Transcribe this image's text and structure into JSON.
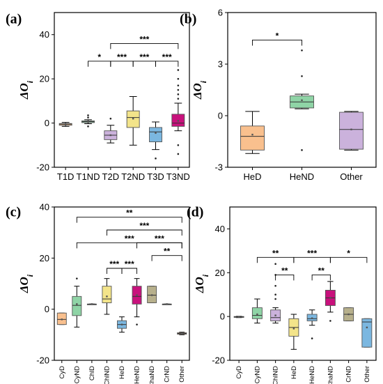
{
  "chart_data": [
    {
      "panel": "(a)",
      "type": "box",
      "ylabel": "ΔO",
      "ylabel_sub": "i",
      "ylim": [
        -20,
        50
      ],
      "yticks": [
        -20,
        0,
        20,
        40
      ],
      "categories": [
        "T1D",
        "T1ND",
        "T2D",
        "T2ND",
        "T3D",
        "T3ND"
      ],
      "boxes": [
        {
          "name": "T1D",
          "min": -1.5,
          "q1": -1.0,
          "median": -0.5,
          "q3": -0.2,
          "max": 0.3,
          "mean": -0.6,
          "color": "#f9c08e",
          "outliers": []
        },
        {
          "name": "T1ND",
          "min": -0.3,
          "q1": 0.2,
          "median": 0.6,
          "q3": 1.0,
          "max": 1.5,
          "mean": 0.6,
          "color": "#8fd4a6",
          "outliers": [
            2.5,
            3.5,
            -1.5
          ]
        },
        {
          "name": "T2D",
          "min": -9,
          "q1": -7.5,
          "median": -5.5,
          "q3": -3.5,
          "max": -1,
          "mean": -5.5,
          "color": "#cbb2dc",
          "outliers": [
            2
          ]
        },
        {
          "name": "T2ND",
          "min": -10,
          "q1": -2,
          "median": 2.5,
          "q3": 5.5,
          "max": 12,
          "mean": 2,
          "color": "#f3e48a",
          "outliers": []
        },
        {
          "name": "T3D",
          "min": -12,
          "q1": -8.5,
          "median": -4,
          "q3": -2,
          "max": 0.5,
          "mean": -4.5,
          "color": "#7bb7e0",
          "outliers": [
            -16
          ]
        },
        {
          "name": "T3ND",
          "min": -3.5,
          "q1": -1.5,
          "median": 0,
          "q3": 4,
          "max": 9,
          "mean": 1,
          "color": "#c8117c",
          "outliers": [
            11,
            13,
            15,
            17,
            20,
            24,
            -10,
            -14
          ]
        }
      ],
      "significance": [
        {
          "from": "T1ND",
          "to": "T2D",
          "label": "*",
          "y": 28
        },
        {
          "from": "T2D",
          "to": "T2ND",
          "label": "***",
          "y": 28
        },
        {
          "from": "T2ND",
          "to": "T3D",
          "label": "***",
          "y": 28
        },
        {
          "from": "T3D",
          "to": "T3ND",
          "label": "***",
          "y": 28
        },
        {
          "from": "T2D",
          "to": "T3ND",
          "label": "***",
          "y": 36
        }
      ]
    },
    {
      "panel": "(b)",
      "type": "box",
      "ylabel": "ΔO",
      "ylabel_sub": "i",
      "ylim": [
        -3,
        6
      ],
      "yticks": [
        -3,
        0,
        3,
        6
      ],
      "categories": [
        "HeD",
        "HeND",
        "Other"
      ],
      "boxes": [
        {
          "name": "HeD",
          "min": -2.2,
          "q1": -2.0,
          "median": -1.2,
          "q3": -0.6,
          "max": 0.25,
          "mean": -1.1,
          "color": "#f9c08e",
          "outliers": []
        },
        {
          "name": "HeND",
          "min": 0.4,
          "q1": 0.45,
          "median": 0.8,
          "q3": 1.15,
          "max": 1.25,
          "mean": 0.9,
          "color": "#8fd4a6",
          "outliers": [
            3.8,
            2.3,
            -2.0
          ]
        },
        {
          "name": "Other",
          "min": -2.0,
          "q1": -1.95,
          "median": -0.8,
          "q3": 0.2,
          "max": 0.25,
          "mean": -0.8,
          "color": "#cbb2dc",
          "outliers": []
        }
      ],
      "significance": [
        {
          "from": "HeD",
          "to": "HeND",
          "label": "*",
          "y": 4.4
        }
      ]
    },
    {
      "panel": "(c)",
      "type": "box",
      "ylabel": "ΔO",
      "ylabel_sub": "i",
      "ylim": [
        -20,
        40
      ],
      "yticks": [
        -20,
        0,
        20,
        40
      ],
      "categories": [
        "CyD",
        "CyND",
        "ChlD",
        "ChlND",
        "HeD",
        "HeND",
        "ChaND",
        "CrND",
        "Other"
      ],
      "boxes": [
        {
          "name": "CyD",
          "min": -6,
          "q1": -6,
          "median": -4,
          "q3": -1.5,
          "max": -1.5,
          "mean": -4,
          "color": "#f9c08e",
          "outliers": []
        },
        {
          "name": "CyND",
          "min": -7,
          "q1": -2.5,
          "median": 1.5,
          "q3": 5,
          "max": 9,
          "mean": 2,
          "color": "#8fd4a6",
          "outliers": [
            12
          ]
        },
        {
          "name": "ChlD",
          "min": 2,
          "q1": 2,
          "median": 2,
          "q3": 2,
          "max": 2,
          "mean": 2,
          "color": "#cbb2dc",
          "outliers": []
        },
        {
          "name": "ChlND",
          "min": -2,
          "q1": 2.5,
          "median": 4,
          "q3": 9,
          "max": 12,
          "mean": 5,
          "color": "#f3e48a",
          "outliers": []
        },
        {
          "name": "HeD",
          "min": -9,
          "q1": -7.5,
          "median": -6,
          "q3": -4.5,
          "max": -3,
          "mean": -6,
          "color": "#7bb7e0",
          "outliers": []
        },
        {
          "name": "HeND",
          "min": -3,
          "q1": 2,
          "median": 5,
          "q3": 9,
          "max": 12,
          "mean": 5.5,
          "color": "#c8117c",
          "outliers": [
            -6
          ]
        },
        {
          "name": "ChaND",
          "min": 2.5,
          "q1": 2.5,
          "median": 5.5,
          "q3": 9,
          "max": 9,
          "mean": 5.5,
          "color": "#b7b08c",
          "outliers": []
        },
        {
          "name": "CrND",
          "min": 2,
          "q1": 2,
          "median": 2,
          "q3": 2,
          "max": 2,
          "mean": 2,
          "color": "#8fd4a6",
          "outliers": []
        },
        {
          "name": "Other",
          "min": -10,
          "q1": -9.8,
          "median": -9.5,
          "q3": -9.2,
          "max": -9,
          "mean": -9.5,
          "color": "#f9c08e",
          "outliers": []
        }
      ],
      "significance": [
        {
          "from": "HeD",
          "to": "HeND",
          "label": "***",
          "y": 16
        },
        {
          "from": "ChlND",
          "to": "HeD",
          "label": "***",
          "y": 16
        },
        {
          "from": "ChaND",
          "to": "Other",
          "label": "**",
          "y": 21
        },
        {
          "from": "HeND",
          "to": "Other",
          "label": "***",
          "y": 26
        },
        {
          "from": "CyND",
          "to": "Other",
          "label": "***",
          "y": 26
        },
        {
          "from": "ChlND",
          "to": "Other",
          "label": "***",
          "y": 31
        },
        {
          "from": "CyND",
          "to": "Other",
          "label": "**",
          "y": 36
        }
      ]
    },
    {
      "panel": "(d)",
      "type": "box",
      "ylabel": "ΔO",
      "ylabel_sub": "i",
      "ylim": [
        -20,
        50
      ],
      "yticks": [
        -20,
        0,
        20,
        40
      ],
      "categories": [
        "CyD",
        "CyND",
        "ChlND",
        "HeD",
        "HeND",
        "ChaND",
        "CrND",
        "Other"
      ],
      "boxes": [
        {
          "name": "CyD",
          "min": -0.5,
          "q1": -0.4,
          "median": -0.2,
          "q3": 0,
          "max": 0.1,
          "mean": -0.2,
          "color": "#f9c08e",
          "outliers": []
        },
        {
          "name": "CyND",
          "min": -3,
          "q1": -1,
          "median": 0.5,
          "q3": 4,
          "max": 8,
          "mean": 1,
          "color": "#8fd4a6",
          "outliers": []
        },
        {
          "name": "ChlND",
          "min": -3,
          "q1": -2,
          "median": -0.5,
          "q3": 3,
          "max": 4,
          "mean": 0.5,
          "color": "#cbb2dc",
          "outliers": [
            8,
            10,
            14,
            19,
            24
          ]
        },
        {
          "name": "HeD",
          "min": -15,
          "q1": -9,
          "median": -5,
          "q3": -1,
          "max": 1,
          "mean": -5.5,
          "color": "#f3e48a",
          "outliers": []
        },
        {
          "name": "HeND",
          "min": -4,
          "q1": -2,
          "median": -1,
          "q3": 1,
          "max": 3,
          "mean": -0.8,
          "color": "#7bb7e0",
          "outliers": [
            -10
          ]
        },
        {
          "name": "ChaND",
          "min": 2,
          "q1": 5,
          "median": 8.5,
          "q3": 12,
          "max": 16,
          "mean": 8.5,
          "color": "#c8117c",
          "outliers": [
            -2
          ]
        },
        {
          "name": "CrND",
          "min": -2,
          "q1": -2,
          "median": 1,
          "q3": 4,
          "max": 4,
          "mean": 1,
          "color": "#b7b08c",
          "outliers": []
        },
        {
          "name": "Other",
          "min": -14,
          "q1": -14,
          "median": -2.5,
          "q3": -1,
          "max": -1,
          "mean": -5,
          "color": "#7bb7e0",
          "outliers": []
        }
      ],
      "significance": [
        {
          "from": "CyND",
          "to": "HeD",
          "label": "**",
          "y": 27
        },
        {
          "from": "HeD",
          "to": "ChaND",
          "label": "***",
          "y": 27
        },
        {
          "from": "ChaND",
          "to": "Other",
          "label": "*",
          "y": 27
        },
        {
          "from": "ChlND",
          "to": "HeD",
          "label": "**",
          "y": 19
        },
        {
          "from": "HeND",
          "to": "ChaND",
          "label": "**",
          "y": 19
        }
      ]
    }
  ]
}
